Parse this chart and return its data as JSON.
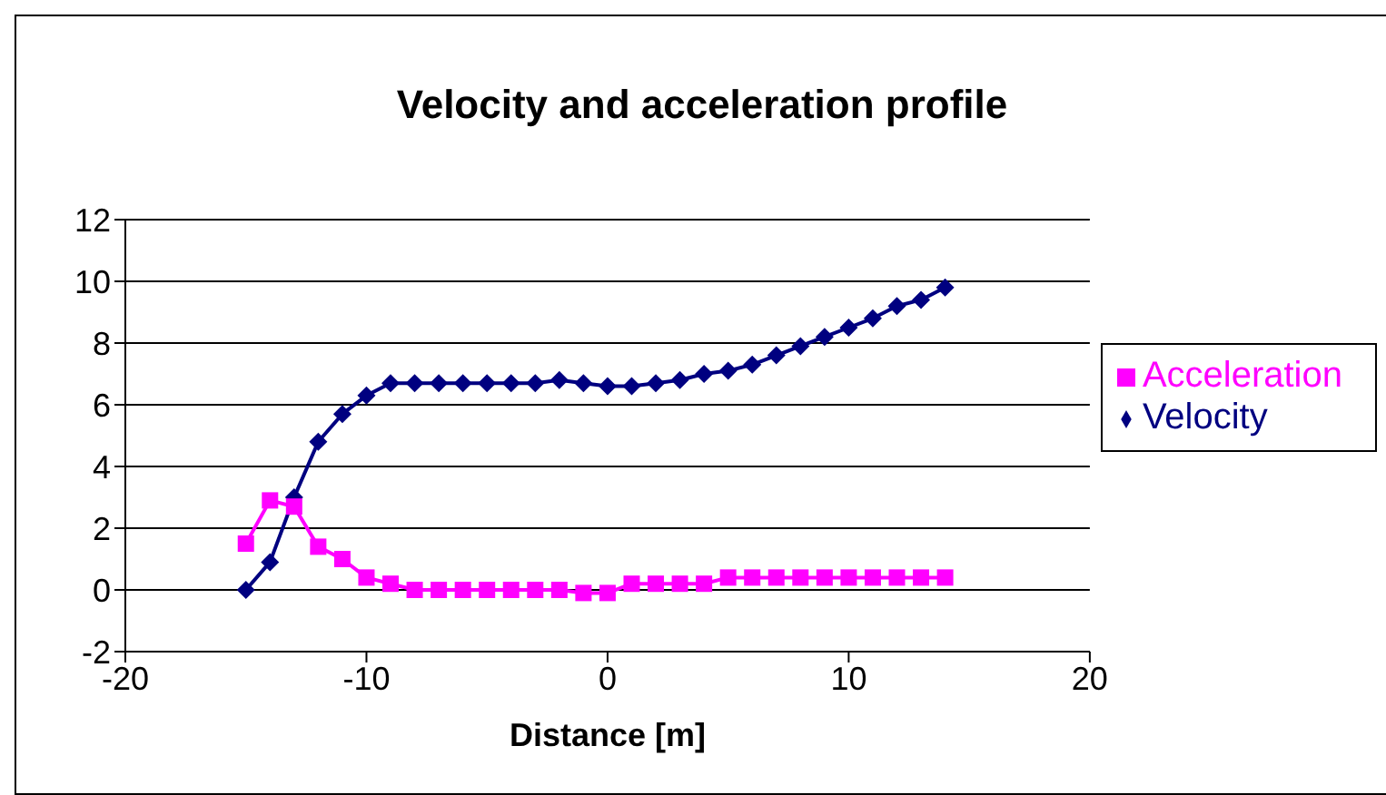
{
  "chart_data": {
    "type": "line",
    "title": "Velocity and acceleration profile",
    "xlabel": "Distance [m]",
    "x": [
      -15,
      -14,
      -13,
      -12,
      -11,
      -10,
      -9,
      -8,
      -7,
      -6,
      -5,
      -4,
      -3,
      -2,
      -1,
      0,
      1,
      2,
      3,
      4,
      5,
      6,
      7,
      8,
      9,
      10,
      11,
      12,
      13,
      14
    ],
    "series": [
      {
        "name": "Velocity",
        "color": "#000080",
        "marker": "diamond",
        "values": [
          0,
          0.9,
          3.0,
          4.8,
          5.7,
          6.3,
          6.7,
          6.7,
          6.7,
          6.7,
          6.7,
          6.7,
          6.7,
          6.8,
          6.7,
          6.6,
          6.6,
          6.7,
          6.8,
          7.0,
          7.1,
          7.3,
          7.6,
          7.9,
          8.2,
          8.5,
          8.8,
          9.2,
          9.4,
          9.8
        ]
      },
      {
        "name": "Acceleration",
        "color": "#ff00ff",
        "marker": "square",
        "values": [
          1.5,
          2.9,
          2.7,
          1.4,
          1.0,
          0.4,
          0.2,
          0,
          0,
          0,
          0,
          0,
          0,
          0,
          -0.1,
          -0.1,
          0.2,
          0.2,
          0.2,
          0.2,
          0.4,
          0.4,
          0.4,
          0.4,
          0.4,
          0.4,
          0.4,
          0.4,
          0.4,
          0.4
        ]
      }
    ],
    "xlim": [
      -20,
      20
    ],
    "xticks": [
      -20,
      -10,
      0,
      10,
      20
    ],
    "ylim": [
      -2,
      12
    ],
    "yticks": [
      -2,
      0,
      2,
      4,
      6,
      8,
      10,
      12
    ],
    "grid": "y",
    "legend": "right"
  }
}
